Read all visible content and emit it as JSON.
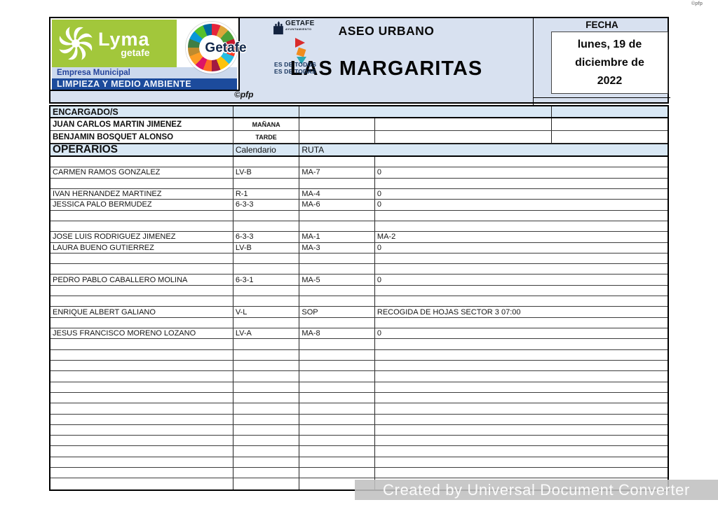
{
  "page": {
    "copyright_small": "©pfp"
  },
  "logo": {
    "brand": "Lyma",
    "brand_sub": "getafe",
    "empresa": "Empresa Municipal",
    "bar": "LIMPIEZA Y MEDIO AMBIENTE",
    "circle_word": "Getafe",
    "ayto_name": "GETAFE",
    "ayto_sub": "AYUNTAMIENTO",
    "slogan_line1": "ES DE TODOS",
    "slogan_line2": "ES DE TODAS",
    "pfp": "©pfp",
    "colors": {
      "green": "#a2c73b",
      "dark_blue": "#1c4b9c",
      "navy": "#17355e",
      "light_blue": "#d8e1f0"
    }
  },
  "header": {
    "service": "ASEO URBANO",
    "zone": "LAS MARGARITAS",
    "fecha_label": "FECHA",
    "fecha_value": "lunes, 19 de diciembre de 2022"
  },
  "table": {
    "rows": [
      {
        "type": "enc_header",
        "cells": [
          "ENCARGADO/S",
          "",
          "",
          ""
        ]
      },
      {
        "type": "enc",
        "cells": [
          "JUAN CARLOS MARTIN JIMENEZ",
          "MAÑANA",
          "",
          "",
          ""
        ]
      },
      {
        "type": "enc",
        "cells": [
          "BENJAMIN BOSQUET ALONSO",
          "TARDE",
          "",
          "",
          ""
        ]
      },
      {
        "type": "op_header",
        "cells": [
          "OPERARIOS",
          "Calendario",
          "RUTA"
        ]
      },
      {
        "type": "data",
        "cells": [
          "",
          "",
          "",
          ""
        ]
      },
      {
        "type": "data",
        "cells": [
          "CARMEN RAMOS GONZALEZ",
          "LV-B",
          "MA-7",
          "0"
        ]
      },
      {
        "type": "data",
        "cells": [
          "",
          "",
          "",
          ""
        ]
      },
      {
        "type": "data",
        "cells": [
          "IVAN HERNANDEZ MARTINEZ",
          "R-1",
          "MA-4",
          "0"
        ]
      },
      {
        "type": "data",
        "cells": [
          "JESSICA PALO BERMUDEZ",
          "6-3-3",
          "MA-6",
          "0"
        ]
      },
      {
        "type": "data",
        "cells": [
          "",
          "",
          "",
          ""
        ]
      },
      {
        "type": "data",
        "cells": [
          "",
          "",
          "",
          ""
        ]
      },
      {
        "type": "data",
        "cells": [
          "JOSE LUIS RODRIGUEZ JIMENEZ",
          "6-3-3",
          "MA-1",
          "MA-2"
        ]
      },
      {
        "type": "data",
        "cells": [
          "LAURA BUENO GUTIERREZ",
          "LV-B",
          "MA-3",
          "0"
        ]
      },
      {
        "type": "data",
        "cells": [
          "",
          "",
          "",
          ""
        ]
      },
      {
        "type": "data",
        "cells": [
          "",
          "",
          "",
          ""
        ]
      },
      {
        "type": "data",
        "cells": [
          "PEDRO PABLO CABALLERO MOLINA",
          "6-3-1",
          "MA-5",
          "0"
        ]
      },
      {
        "type": "data",
        "cells": [
          "",
          "",
          "",
          ""
        ]
      },
      {
        "type": "data",
        "cells": [
          "",
          "",
          "",
          ""
        ]
      },
      {
        "type": "data",
        "cells": [
          "ENRIQUE ALBERT GALIANO",
          "V-L",
          "SOP",
          "RECOGIDA DE HOJAS SECTOR 3 07:00"
        ]
      },
      {
        "type": "data",
        "cells": [
          "",
          "",
          "",
          ""
        ]
      },
      {
        "type": "data",
        "cells": [
          "JESUS FRANCISCO MORENO LOZANO",
          "LV-A",
          "MA-8",
          "0"
        ]
      },
      {
        "type": "data",
        "cells": [
          "",
          "",
          "",
          ""
        ]
      },
      {
        "type": "data",
        "cells": [
          "",
          "",
          "",
          ""
        ]
      },
      {
        "type": "data",
        "cells": [
          "",
          "",
          "",
          ""
        ]
      },
      {
        "type": "data",
        "cells": [
          "",
          "",
          "",
          ""
        ]
      },
      {
        "type": "data",
        "cells": [
          "",
          "",
          "",
          ""
        ]
      },
      {
        "type": "data",
        "cells": [
          "",
          "",
          "",
          ""
        ]
      },
      {
        "type": "data",
        "cells": [
          "",
          "",
          "",
          ""
        ]
      },
      {
        "type": "data",
        "cells": [
          "",
          "",
          "",
          ""
        ]
      },
      {
        "type": "data",
        "cells": [
          "",
          "",
          "",
          ""
        ]
      },
      {
        "type": "data",
        "cells": [
          "",
          "",
          "",
          ""
        ]
      },
      {
        "type": "data",
        "cells": [
          "",
          "",
          "",
          ""
        ]
      },
      {
        "type": "data",
        "cells": [
          "",
          "",
          "",
          ""
        ]
      },
      {
        "type": "data",
        "cells": [
          "",
          "",
          "",
          ""
        ]
      },
      {
        "type": "data",
        "cells": [
          "",
          "",
          "",
          ""
        ]
      }
    ]
  },
  "watermark": "Created by Universal Document Converter"
}
